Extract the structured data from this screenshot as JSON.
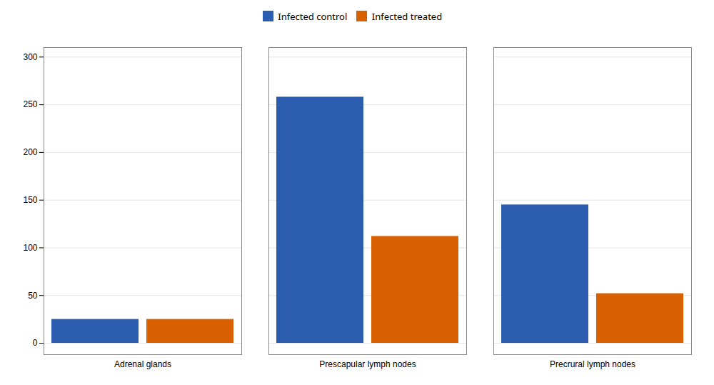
{
  "chart_data": {
    "type": "bar",
    "categories": [
      "Adrenal glands",
      "Prescapular lymph nodes",
      "Precrural lymph nodes"
    ],
    "series": [
      {
        "name": "Infected control",
        "color": "#2B5CAD",
        "values": [
          25,
          258,
          145
        ]
      },
      {
        "name": "Infected treated",
        "color": "#D96000",
        "values": [
          25,
          112,
          52
        ]
      }
    ],
    "ylim": [
      -12,
      310
    ],
    "yticks": [
      0,
      50,
      100,
      150,
      200,
      250,
      300
    ],
    "grid": true,
    "legend": "top"
  }
}
